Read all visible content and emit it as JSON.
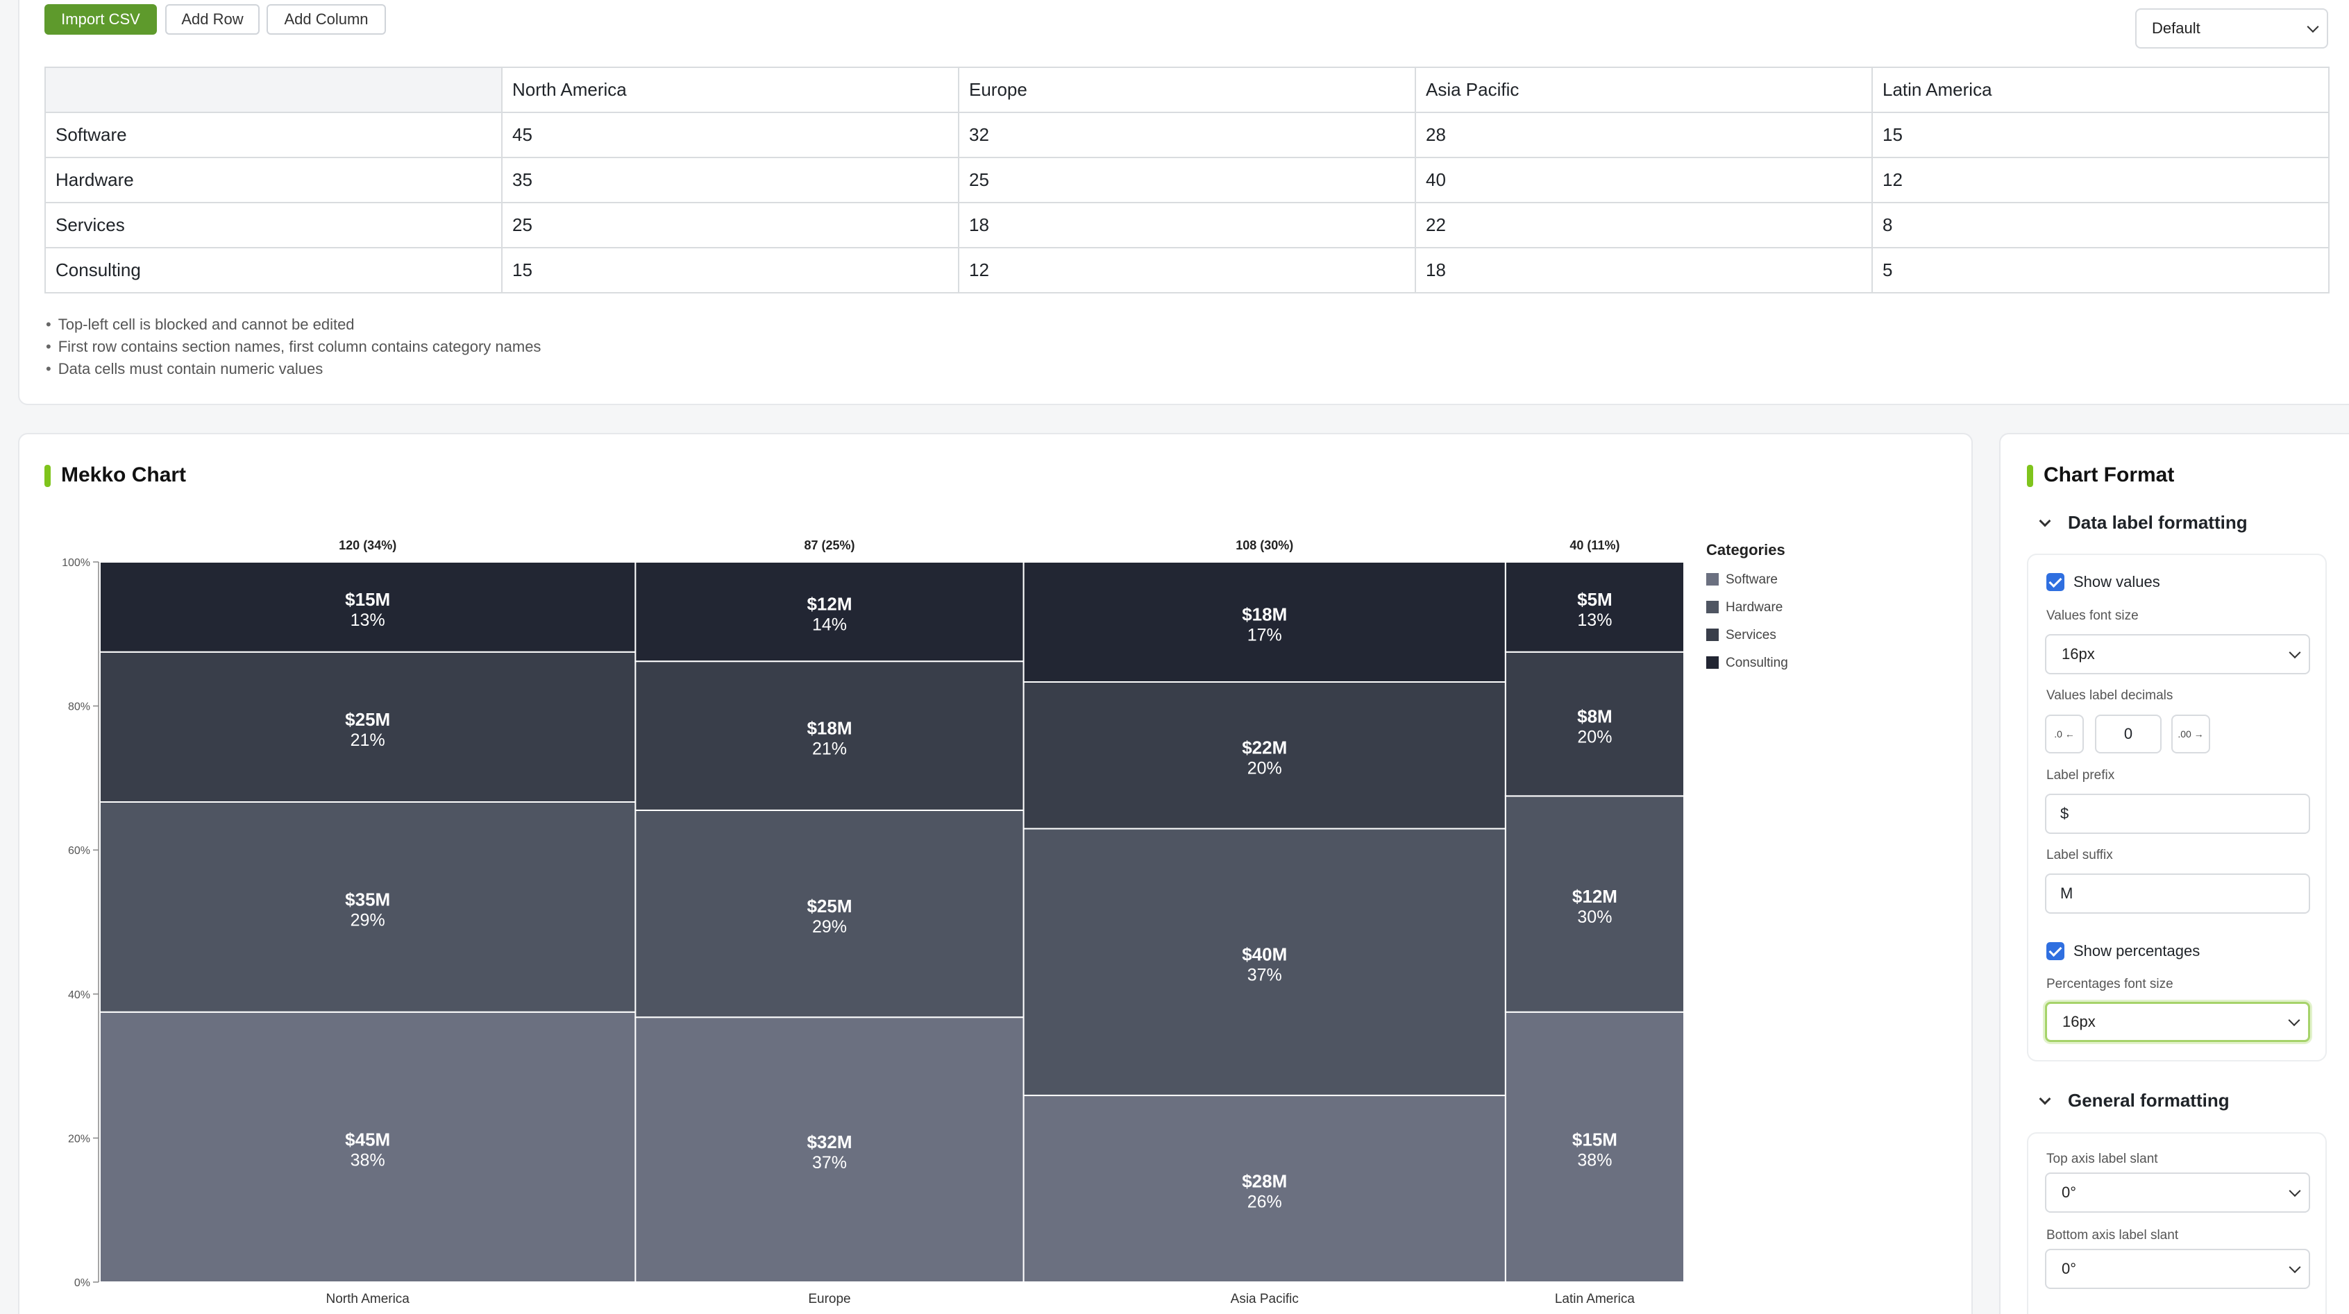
{
  "toolbar": {
    "import_label": "Import CSV",
    "add_row_label": "Add Row",
    "add_column_label": "Add Column",
    "preset_value": "Default"
  },
  "table": {
    "header": [
      "",
      "North America",
      "Europe",
      "Asia Pacific",
      "Latin America"
    ],
    "rows": [
      [
        "Software",
        "45",
        "32",
        "28",
        "15"
      ],
      [
        "Hardware",
        "35",
        "25",
        "40",
        "12"
      ],
      [
        "Services",
        "25",
        "18",
        "22",
        "8"
      ],
      [
        "Consulting",
        "15",
        "12",
        "18",
        "5"
      ]
    ]
  },
  "notes": [
    "Top-left cell is blocked and cannot be edited",
    "First row contains section names, first column contains category names",
    "Data cells must contain numeric values"
  ],
  "chart_section": {
    "title": "Mekko Chart"
  },
  "chart_data": {
    "type": "mekko",
    "categories": [
      "North America",
      "Europe",
      "Asia Pacific",
      "Latin America"
    ],
    "top_labels": [
      "120 (34%)",
      "87 (25%)",
      "108 (30%)",
      "40 (11%)"
    ],
    "series": [
      {
        "name": "Software",
        "values": [
          45,
          32,
          28,
          15
        ],
        "labels": [
          "$45M",
          "$32M",
          "$28M",
          "$15M"
        ],
        "pcts": [
          "38%",
          "37%",
          "26%",
          "38%"
        ]
      },
      {
        "name": "Hardware",
        "values": [
          35,
          25,
          40,
          12
        ],
        "labels": [
          "$35M",
          "$25M",
          "$40M",
          "$12M"
        ],
        "pcts": [
          "29%",
          "29%",
          "37%",
          "30%"
        ]
      },
      {
        "name": "Services",
        "values": [
          25,
          18,
          22,
          8
        ],
        "labels": [
          "$25M",
          "$18M",
          "$22M",
          "$8M"
        ],
        "pcts": [
          "21%",
          "21%",
          "20%",
          "20%"
        ]
      },
      {
        "name": "Consulting",
        "values": [
          15,
          12,
          18,
          5
        ],
        "labels": [
          "$15M",
          "$12M",
          "$18M",
          "$5M"
        ],
        "pcts": [
          "13%",
          "14%",
          "17%",
          "13%"
        ]
      }
    ],
    "y_ticks": [
      "0%",
      "20%",
      "40%",
      "60%",
      "80%",
      "100%"
    ],
    "ylim": [
      0,
      100
    ],
    "legend_title": "Categories",
    "legend_position": "right",
    "colors": [
      "#6b7080",
      "#4f5562",
      "#393e4a",
      "#222633"
    ]
  },
  "format": {
    "title": "Chart Format",
    "data_label_section": "Data label formatting",
    "show_values_label": "Show values",
    "values_font_size_label": "Values font size",
    "values_font_size": "16px",
    "decimals_label": "Values label decimals",
    "decimals_value": "0",
    "decrease_glyph": ".0 ←",
    "increase_glyph": ".00 →",
    "prefix_label": "Label prefix",
    "prefix_value": "$",
    "suffix_label": "Label suffix",
    "suffix_value": "M",
    "show_pct_label": "Show percentages",
    "pct_font_size_label": "Percentages font size",
    "pct_font_size": "16px",
    "general_section": "General formatting",
    "top_slant_label": "Top axis label slant",
    "top_slant_value": "0°",
    "bottom_slant_label": "Bottom axis label slant",
    "bottom_slant_value": "0°"
  }
}
